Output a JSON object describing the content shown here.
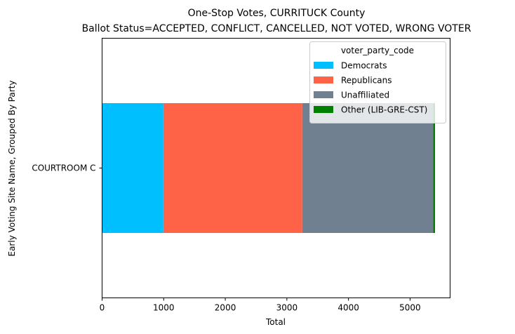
{
  "chart_data": {
    "type": "bar",
    "orientation": "horizontal",
    "stacked": true,
    "title": "One-Stop Votes, CURRITUCK County",
    "subtitle": "Ballot Status=ACCEPTED, CONFLICT, CANCELLED, NOT VOTED, WRONG VOTER",
    "xlabel": "Total",
    "ylabel": "Early Voting Site Name, Grouped By Party",
    "categories": [
      "COURTROOM C"
    ],
    "xlim": [
      0,
      5650
    ],
    "xticks": [
      0,
      1000,
      2000,
      3000,
      4000,
      5000
    ],
    "grid": false,
    "legend": {
      "title": "voter_party_code",
      "placement": "top-right"
    },
    "series": [
      {
        "name": "Democrats",
        "values": [
          995
        ],
        "color": "#00bfff"
      },
      {
        "name": "Republicans",
        "values": [
          2255
        ],
        "color": "#ff6347"
      },
      {
        "name": "Unaffiliated",
        "values": [
          2125
        ],
        "color": "#708090"
      },
      {
        "name": "Other (LIB-GRE-CST)",
        "values": [
          30
        ],
        "color": "#008000"
      }
    ]
  }
}
